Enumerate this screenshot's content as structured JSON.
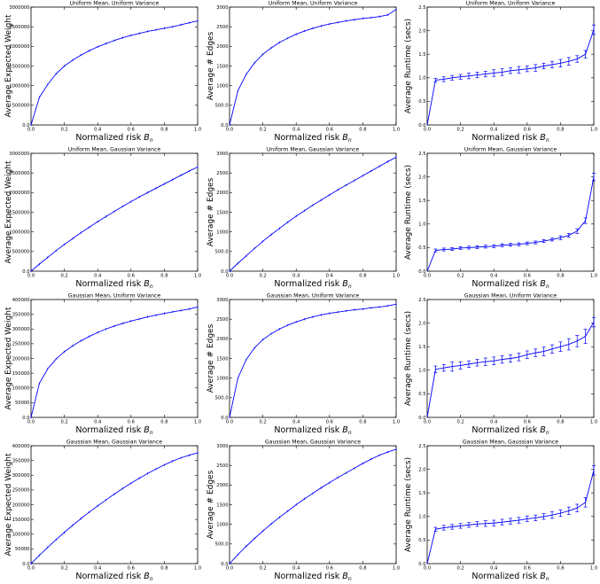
{
  "chart_data": [
    {
      "panel": "r0c0",
      "type": "line",
      "title": "Uniform Mean, Uniform Variance",
      "xlabel": "Normalized risk",
      "xlabel_sub": "n",
      "ylabel": "Average Expected Weight",
      "xlim": [
        0,
        1
      ],
      "ylim": [
        0,
        3000000
      ],
      "xticks": [
        0.0,
        0.2,
        0.4,
        0.6,
        0.8,
        1.0
      ],
      "yticks": [
        0,
        500000,
        1000000,
        1500000,
        2000000,
        2500000,
        3000000
      ],
      "x": [
        0,
        0.05,
        0.1,
        0.15,
        0.2,
        0.25,
        0.3,
        0.35,
        0.4,
        0.45,
        0.5,
        0.55,
        0.6,
        0.65,
        0.7,
        0.75,
        0.8,
        0.85,
        0.9,
        0.95,
        1.0
      ],
      "y": [
        0,
        700000,
        1030000,
        1300000,
        1500000,
        1650000,
        1780000,
        1890000,
        1990000,
        2070000,
        2150000,
        2220000,
        2280000,
        2330000,
        2380000,
        2420000,
        2460000,
        2500000,
        2550000,
        2600000,
        2650000
      ]
    },
    {
      "panel": "r0c1",
      "type": "line",
      "title": "Uniform Mean, Uniform Variance",
      "xlabel": "Normalized risk",
      "xlabel_sub": "n",
      "ylabel": "Average # Edges",
      "xlim": [
        0,
        1
      ],
      "ylim": [
        0,
        3000
      ],
      "xticks": [
        0.0,
        0.2,
        0.4,
        0.6,
        0.8,
        1.0
      ],
      "yticks": [
        0,
        500,
        1000,
        1500,
        2000,
        2500,
        3000
      ],
      "x": [
        0,
        0.05,
        0.1,
        0.15,
        0.2,
        0.25,
        0.3,
        0.35,
        0.4,
        0.45,
        0.5,
        0.55,
        0.6,
        0.65,
        0.7,
        0.75,
        0.8,
        0.85,
        0.9,
        0.95,
        1.0
      ],
      "y": [
        0,
        870,
        1290,
        1580,
        1800,
        1960,
        2100,
        2210,
        2310,
        2390,
        2460,
        2520,
        2570,
        2610,
        2650,
        2680,
        2710,
        2730,
        2760,
        2800,
        2940
      ]
    },
    {
      "panel": "r0c2",
      "type": "line",
      "title": "Uniform Mean, Uniform Variance",
      "xlabel": "Normalized risk",
      "xlabel_sub": "n",
      "ylabel": "Average Runtime (secs)",
      "xlim": [
        0,
        1
      ],
      "ylim": [
        0,
        2.5
      ],
      "xticks": [
        0.0,
        0.2,
        0.4,
        0.6,
        0.8,
        1.0
      ],
      "yticks": [
        0.0,
        0.5,
        1.0,
        1.5,
        2.0,
        2.5
      ],
      "x": [
        0,
        0.05,
        0.1,
        0.15,
        0.2,
        0.25,
        0.3,
        0.35,
        0.4,
        0.45,
        0.5,
        0.55,
        0.6,
        0.65,
        0.7,
        0.75,
        0.8,
        0.85,
        0.9,
        0.95,
        1.0
      ],
      "y": [
        0,
        0.95,
        0.97,
        1.0,
        1.02,
        1.04,
        1.06,
        1.08,
        1.1,
        1.12,
        1.15,
        1.17,
        1.19,
        1.21,
        1.25,
        1.28,
        1.31,
        1.35,
        1.4,
        1.5,
        2.02
      ],
      "err": [
        0,
        0.04,
        0.05,
        0.05,
        0.05,
        0.06,
        0.06,
        0.06,
        0.07,
        0.07,
        0.06,
        0.07,
        0.06,
        0.07,
        0.06,
        0.07,
        0.08,
        0.08,
        0.07,
        0.08,
        0.1
      ]
    },
    {
      "panel": "r1c0",
      "type": "line",
      "title": "Uniform Mean, Gaussian Variance",
      "xlabel": "Normalized risk",
      "xlabel_sub": "n",
      "ylabel": "Average Expected Weight",
      "xlim": [
        0,
        1
      ],
      "ylim": [
        0,
        3000000
      ],
      "xticks": [
        0.0,
        0.2,
        0.4,
        0.6,
        0.8,
        1.0
      ],
      "yticks": [
        0,
        500000,
        1000000,
        1500000,
        2000000,
        2500000,
        3000000
      ],
      "x": [
        0,
        0.05,
        0.1,
        0.15,
        0.2,
        0.25,
        0.3,
        0.35,
        0.4,
        0.45,
        0.5,
        0.55,
        0.6,
        0.65,
        0.7,
        0.75,
        0.8,
        0.85,
        0.9,
        0.95,
        1.0
      ],
      "y": [
        0,
        180000,
        350000,
        520000,
        680000,
        830000,
        980000,
        1120000,
        1260000,
        1390000,
        1520000,
        1650000,
        1770000,
        1890000,
        2000000,
        2110000,
        2220000,
        2330000,
        2440000,
        2550000,
        2650000
      ]
    },
    {
      "panel": "r1c1",
      "type": "line",
      "title": "Uniform Mean, Gaussian Variance",
      "xlabel": "Normalized risk",
      "xlabel_sub": "n",
      "ylabel": "Average # Edges",
      "xlim": [
        0,
        1
      ],
      "ylim": [
        0,
        3000
      ],
      "xticks": [
        0.0,
        0.2,
        0.4,
        0.6,
        0.8,
        1.0
      ],
      "yticks": [
        0,
        500,
        1000,
        1500,
        2000,
        2500,
        3000
      ],
      "x": [
        0,
        0.05,
        0.1,
        0.15,
        0.2,
        0.25,
        0.3,
        0.35,
        0.4,
        0.45,
        0.5,
        0.55,
        0.6,
        0.65,
        0.7,
        0.75,
        0.8,
        0.85,
        0.9,
        0.95,
        1.0
      ],
      "y": [
        0,
        200,
        390,
        580,
        760,
        930,
        1090,
        1250,
        1400,
        1540,
        1680,
        1810,
        1940,
        2070,
        2190,
        2310,
        2430,
        2550,
        2670,
        2790,
        2900
      ]
    },
    {
      "panel": "r1c2",
      "type": "line",
      "title": "Uniform Mean, Gaussian Variance",
      "xlabel": "Normalized risk",
      "xlabel_sub": "n",
      "ylabel": "Average Runtime (secs)",
      "xlim": [
        0,
        1
      ],
      "ylim": [
        0,
        2.5
      ],
      "xticks": [
        0.0,
        0.2,
        0.4,
        0.6,
        0.8,
        1.0
      ],
      "yticks": [
        0.0,
        0.5,
        1.0,
        1.5,
        2.0,
        2.5
      ],
      "x": [
        0,
        0.05,
        0.1,
        0.15,
        0.2,
        0.25,
        0.3,
        0.35,
        0.4,
        0.45,
        0.5,
        0.55,
        0.6,
        0.65,
        0.7,
        0.75,
        0.8,
        0.85,
        0.9,
        0.95,
        1.0
      ],
      "y": [
        0,
        0.44,
        0.46,
        0.47,
        0.49,
        0.5,
        0.51,
        0.52,
        0.53,
        0.55,
        0.56,
        0.57,
        0.59,
        0.61,
        0.64,
        0.67,
        0.71,
        0.76,
        0.85,
        1.07,
        2.0
      ],
      "err": [
        0,
        0.03,
        0.03,
        0.03,
        0.03,
        0.03,
        0.03,
        0.03,
        0.03,
        0.03,
        0.03,
        0.03,
        0.03,
        0.03,
        0.03,
        0.03,
        0.04,
        0.04,
        0.05,
        0.06,
        0.08
      ]
    },
    {
      "panel": "r2c0",
      "type": "line",
      "title": "Gaussian Mean, Uniform Variance",
      "xlabel": "Normalized risk",
      "xlabel_sub": "n",
      "ylabel": "Average Expected Weight",
      "xlim": [
        0,
        1
      ],
      "ylim": [
        0,
        400000
      ],
      "xticks": [
        0.0,
        0.2,
        0.4,
        0.6,
        0.8,
        1.0
      ],
      "yticks": [
        0,
        50000,
        100000,
        150000,
        200000,
        250000,
        300000,
        350000,
        400000
      ],
      "x": [
        0,
        0.05,
        0.1,
        0.15,
        0.2,
        0.25,
        0.3,
        0.35,
        0.4,
        0.45,
        0.5,
        0.55,
        0.6,
        0.65,
        0.7,
        0.75,
        0.8,
        0.85,
        0.9,
        0.95,
        1.0
      ],
      "y": [
        0,
        115000,
        165000,
        198000,
        223000,
        243000,
        260000,
        275000,
        288000,
        300000,
        310000,
        319000,
        327000,
        334000,
        341000,
        347000,
        353000,
        358000,
        363000,
        368000,
        375000
      ]
    },
    {
      "panel": "r2c1",
      "type": "line",
      "title": "Gaussian Mean, Uniform Variance",
      "xlabel": "Normalized risk",
      "xlabel_sub": "n",
      "ylabel": "Average # Edges",
      "xlim": [
        0,
        1
      ],
      "ylim": [
        0,
        3000
      ],
      "xticks": [
        0.0,
        0.2,
        0.4,
        0.6,
        0.8,
        1.0
      ],
      "yticks": [
        0,
        500,
        1000,
        1500,
        2000,
        2500,
        3000
      ],
      "x": [
        0,
        0.05,
        0.1,
        0.15,
        0.2,
        0.25,
        0.3,
        0.35,
        0.4,
        0.45,
        0.5,
        0.55,
        0.6,
        0.65,
        0.7,
        0.75,
        0.8,
        0.85,
        0.9,
        0.95,
        1.0
      ],
      "y": [
        0,
        1000,
        1470,
        1770,
        1980,
        2130,
        2250,
        2350,
        2430,
        2500,
        2560,
        2610,
        2650,
        2680,
        2710,
        2740,
        2760,
        2790,
        2810,
        2840,
        2880
      ]
    },
    {
      "panel": "r2c2",
      "type": "line",
      "title": "Gaussian Mean, Uniform Variance",
      "xlabel": "Normalized risk",
      "xlabel_sub": "n",
      "ylabel": "Average Runtime (secs)",
      "xlim": [
        0,
        1
      ],
      "ylim": [
        0,
        2.5
      ],
      "xticks": [
        0.0,
        0.2,
        0.4,
        0.6,
        0.8,
        1.0
      ],
      "yticks": [
        0.0,
        0.5,
        1.0,
        1.5,
        2.0,
        2.5
      ],
      "x": [
        0,
        0.05,
        0.1,
        0.15,
        0.2,
        0.25,
        0.3,
        0.35,
        0.4,
        0.45,
        0.5,
        0.55,
        0.6,
        0.65,
        0.7,
        0.75,
        0.8,
        0.85,
        0.9,
        0.95,
        1.0
      ],
      "y": [
        0,
        1.02,
        1.05,
        1.08,
        1.1,
        1.13,
        1.16,
        1.18,
        1.2,
        1.23,
        1.25,
        1.28,
        1.33,
        1.37,
        1.4,
        1.45,
        1.5,
        1.55,
        1.62,
        1.72,
        2.02
      ],
      "err": [
        0,
        0.07,
        0.07,
        0.1,
        0.08,
        0.07,
        0.07,
        0.08,
        0.08,
        0.08,
        0.08,
        0.08,
        0.08,
        0.08,
        0.09,
        0.09,
        0.1,
        0.12,
        0.12,
        0.15,
        0.1
      ]
    },
    {
      "panel": "r3c0",
      "type": "line",
      "title": "Gaussian Mean, Gaussian Variance",
      "xlabel": "Normalized risk",
      "xlabel_sub": "n",
      "ylabel": "Average Expected Weight",
      "xlim": [
        0,
        1
      ],
      "ylim": [
        0,
        400000
      ],
      "xticks": [
        0.0,
        0.2,
        0.4,
        0.6,
        0.8,
        1.0
      ],
      "yticks": [
        0,
        50000,
        100000,
        150000,
        200000,
        250000,
        300000,
        350000,
        400000
      ],
      "x": [
        0,
        0.05,
        0.1,
        0.15,
        0.2,
        0.25,
        0.3,
        0.35,
        0.4,
        0.45,
        0.5,
        0.55,
        0.6,
        0.65,
        0.7,
        0.75,
        0.8,
        0.85,
        0.9,
        0.95,
        1.0
      ],
      "y": [
        0,
        28000,
        55000,
        81000,
        106000,
        130000,
        153000,
        175000,
        196000,
        216000,
        236000,
        255000,
        273000,
        290000,
        306000,
        321000,
        335000,
        348000,
        359000,
        368000,
        376000
      ]
    },
    {
      "panel": "r3c1",
      "type": "line",
      "title": "Gaussian Mean, Gaussian Variance",
      "xlabel": "Normalized risk",
      "xlabel_sub": "n",
      "ylabel": "Average # Edges",
      "xlim": [
        0,
        1
      ],
      "ylim": [
        0,
        3000
      ],
      "xticks": [
        0.0,
        0.2,
        0.4,
        0.6,
        0.8,
        1.0
      ],
      "yticks": [
        0,
        500,
        1000,
        1500,
        2000,
        2500,
        3000
      ],
      "x": [
        0,
        0.05,
        0.1,
        0.15,
        0.2,
        0.25,
        0.3,
        0.35,
        0.4,
        0.45,
        0.5,
        0.55,
        0.6,
        0.65,
        0.7,
        0.75,
        0.8,
        0.85,
        0.9,
        0.95,
        1.0
      ],
      "y": [
        0,
        230,
        440,
        640,
        830,
        1010,
        1180,
        1340,
        1500,
        1650,
        1790,
        1930,
        2060,
        2190,
        2310,
        2430,
        2550,
        2660,
        2760,
        2840,
        2910
      ]
    },
    {
      "panel": "r3c2",
      "type": "line",
      "title": "Gaussian Mean, Gaussian Variance",
      "xlabel": "Normalized risk",
      "xlabel_sub": "n",
      "ylabel": "Average Runtime (secs)",
      "xlim": [
        0,
        1
      ],
      "ylim": [
        0,
        2.5
      ],
      "xticks": [
        0.0,
        0.2,
        0.4,
        0.6,
        0.8,
        1.0
      ],
      "yticks": [
        0.0,
        0.5,
        1.0,
        1.5,
        2.0,
        2.5
      ],
      "x": [
        0,
        0.05,
        0.1,
        0.15,
        0.2,
        0.25,
        0.3,
        0.35,
        0.4,
        0.45,
        0.5,
        0.55,
        0.6,
        0.65,
        0.7,
        0.75,
        0.8,
        0.85,
        0.9,
        0.95,
        1.0
      ],
      "y": [
        0,
        0.73,
        0.76,
        0.78,
        0.8,
        0.82,
        0.84,
        0.85,
        0.86,
        0.88,
        0.9,
        0.92,
        0.95,
        0.97,
        1.0,
        1.03,
        1.07,
        1.12,
        1.18,
        1.3,
        1.98
      ],
      "err": [
        0,
        0.04,
        0.05,
        0.05,
        0.05,
        0.05,
        0.05,
        0.06,
        0.06,
        0.06,
        0.06,
        0.06,
        0.06,
        0.06,
        0.06,
        0.07,
        0.07,
        0.08,
        0.08,
        0.1,
        0.1
      ]
    }
  ]
}
